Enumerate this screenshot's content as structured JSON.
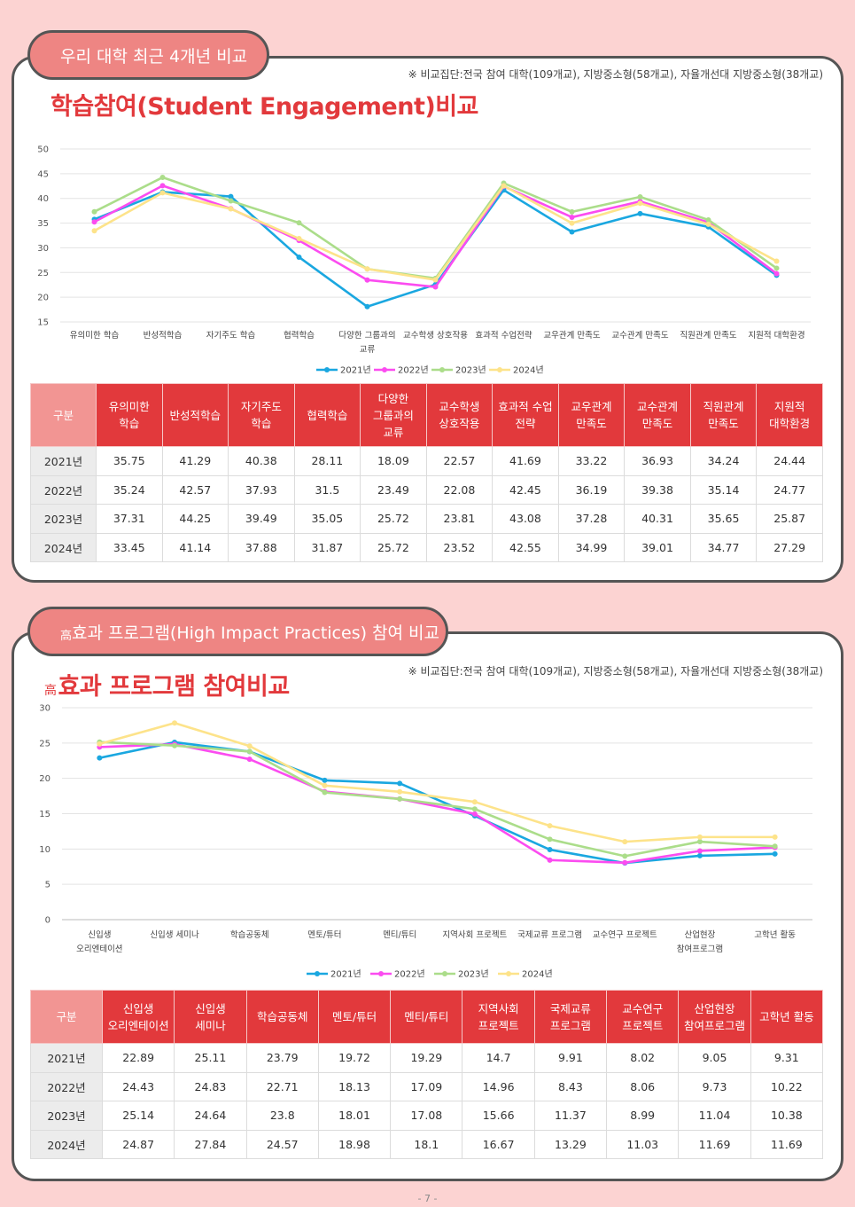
{
  "section1": {
    "pill_label": "우리 대학 최근 4개년 비교",
    "note": "※ 비교집단:전국 참여 대학(109개교), 지방중소형(58개교), 자율개선대 지방중소형(38개교)",
    "title": "학습참여(Student Engagement)비교"
  },
  "section2": {
    "pill_prefix": "高",
    "pill_label": "효과 프로그램(High Impact Practices) 참여 비교",
    "note": "※ 비교집단:전국 참여 대학(109개교), 지방중소형(58개교), 자율개선대 지방중소형(38개교)",
    "title_prefix": "高",
    "title": "효과 프로그램 참여비교"
  },
  "colors": {
    "2021년": "#1aa7e0",
    "2022년": "#fb4cf0",
    "2023년": "#abdd8a",
    "2024년": "#fde38a"
  },
  "chart_data": [
    {
      "type": "line",
      "title": "학습참여(Student Engagement)비교",
      "categories": [
        "유의미한 학습",
        "반성적학습",
        "자기주도 학습",
        "협력학습",
        "다양한 그룹과의\n교류",
        "교수학생 상호작용",
        "효과적 수업전략",
        "교우관계 만족도",
        "교수관계 만족도",
        "직원관계 만족도",
        "지원적 대학환경"
      ],
      "ylim": [
        15,
        50
      ],
      "yticks": [
        15,
        20,
        25,
        30,
        35,
        40,
        45,
        50
      ],
      "grid": true,
      "legend": "bottom",
      "series": [
        {
          "name": "2021년",
          "values": [
            35.75,
            41.29,
            40.38,
            28.11,
            18.09,
            22.57,
            41.69,
            33.22,
            36.93,
            34.24,
            24.44
          ]
        },
        {
          "name": "2022년",
          "values": [
            35.24,
            42.57,
            37.93,
            31.5,
            23.49,
            22.08,
            42.45,
            36.19,
            39.38,
            35.14,
            24.77
          ]
        },
        {
          "name": "2023년",
          "values": [
            37.31,
            44.25,
            39.49,
            35.05,
            25.72,
            23.81,
            43.08,
            37.28,
            40.31,
            35.65,
            25.87
          ]
        },
        {
          "name": "2024년",
          "values": [
            33.45,
            41.14,
            37.88,
            31.87,
            25.72,
            23.52,
            42.55,
            34.99,
            39.01,
            34.77,
            27.29
          ]
        }
      ]
    },
    {
      "type": "line",
      "title": "효과 프로그램 참여비교",
      "categories": [
        "신입생\n오리엔테이션",
        "신입생 세미나",
        "학습공동체",
        "멘토/튜터",
        "멘티/튜티",
        "지역사회 프로젝트",
        "국제교류 프로그램",
        "교수연구 프로젝트",
        "산업현장\n참여프로그램",
        "고학년 활동"
      ],
      "ylim": [
        0,
        30
      ],
      "yticks": [
        0,
        5,
        10,
        15,
        20,
        25,
        30
      ],
      "grid": true,
      "legend": "bottom",
      "series": [
        {
          "name": "2021년",
          "values": [
            22.89,
            25.11,
            23.79,
            19.72,
            19.29,
            14.7,
            9.91,
            8.02,
            9.05,
            9.31
          ]
        },
        {
          "name": "2022년",
          "values": [
            24.43,
            24.83,
            22.71,
            18.13,
            17.09,
            14.96,
            8.43,
            8.06,
            9.73,
            10.22
          ]
        },
        {
          "name": "2023년",
          "values": [
            25.14,
            24.64,
            23.8,
            18.01,
            17.08,
            15.66,
            11.37,
            8.99,
            11.04,
            10.38
          ]
        },
        {
          "name": "2024년",
          "values": [
            24.87,
            27.84,
            24.57,
            18.98,
            18.1,
            16.67,
            13.29,
            11.03,
            11.69,
            11.69
          ]
        }
      ]
    }
  ],
  "table1": {
    "headers": [
      "구분",
      "유의미한\n학습",
      "반성적학습",
      "자기주도\n학습",
      "협력학습",
      "다양한\n그룹과의\n교류",
      "교수학생\n상호작용",
      "효과적 수업\n전략",
      "교우관계\n만족도",
      "교수관계\n만족도",
      "직원관계\n만족도",
      "지원적\n대학환경"
    ],
    "rows": [
      [
        "2021년",
        "35.75",
        "41.29",
        "40.38",
        "28.11",
        "18.09",
        "22.57",
        "41.69",
        "33.22",
        "36.93",
        "34.24",
        "24.44"
      ],
      [
        "2022년",
        "35.24",
        "42.57",
        "37.93",
        "31.5",
        "23.49",
        "22.08",
        "42.45",
        "36.19",
        "39.38",
        "35.14",
        "24.77"
      ],
      [
        "2023년",
        "37.31",
        "44.25",
        "39.49",
        "35.05",
        "25.72",
        "23.81",
        "43.08",
        "37.28",
        "40.31",
        "35.65",
        "25.87"
      ],
      [
        "2024년",
        "33.45",
        "41.14",
        "37.88",
        "31.87",
        "25.72",
        "23.52",
        "42.55",
        "34.99",
        "39.01",
        "34.77",
        "27.29"
      ]
    ]
  },
  "table2": {
    "headers": [
      "구분",
      "신입생\n오리엔테이션",
      "신입생\n세미나",
      "학습공동체",
      "멘토/튜터",
      "멘티/튜티",
      "지역사회\n프로젝트",
      "국제교류\n프로그램",
      "교수연구\n프로젝트",
      "산업현장\n참여프로그램",
      "고학년 활동"
    ],
    "rows": [
      [
        "2021년",
        "22.89",
        "25.11",
        "23.79",
        "19.72",
        "19.29",
        "14.7",
        "9.91",
        "8.02",
        "9.05",
        "9.31"
      ],
      [
        "2022년",
        "24.43",
        "24.83",
        "22.71",
        "18.13",
        "17.09",
        "14.96",
        "8.43",
        "8.06",
        "9.73",
        "10.22"
      ],
      [
        "2023년",
        "25.14",
        "24.64",
        "23.8",
        "18.01",
        "17.08",
        "15.66",
        "11.37",
        "8.99",
        "11.04",
        "10.38"
      ],
      [
        "2024년",
        "24.87",
        "27.84",
        "24.57",
        "18.98",
        "18.1",
        "16.67",
        "13.29",
        "11.03",
        "11.69",
        "11.69"
      ]
    ]
  },
  "page_number": "- 7 -"
}
